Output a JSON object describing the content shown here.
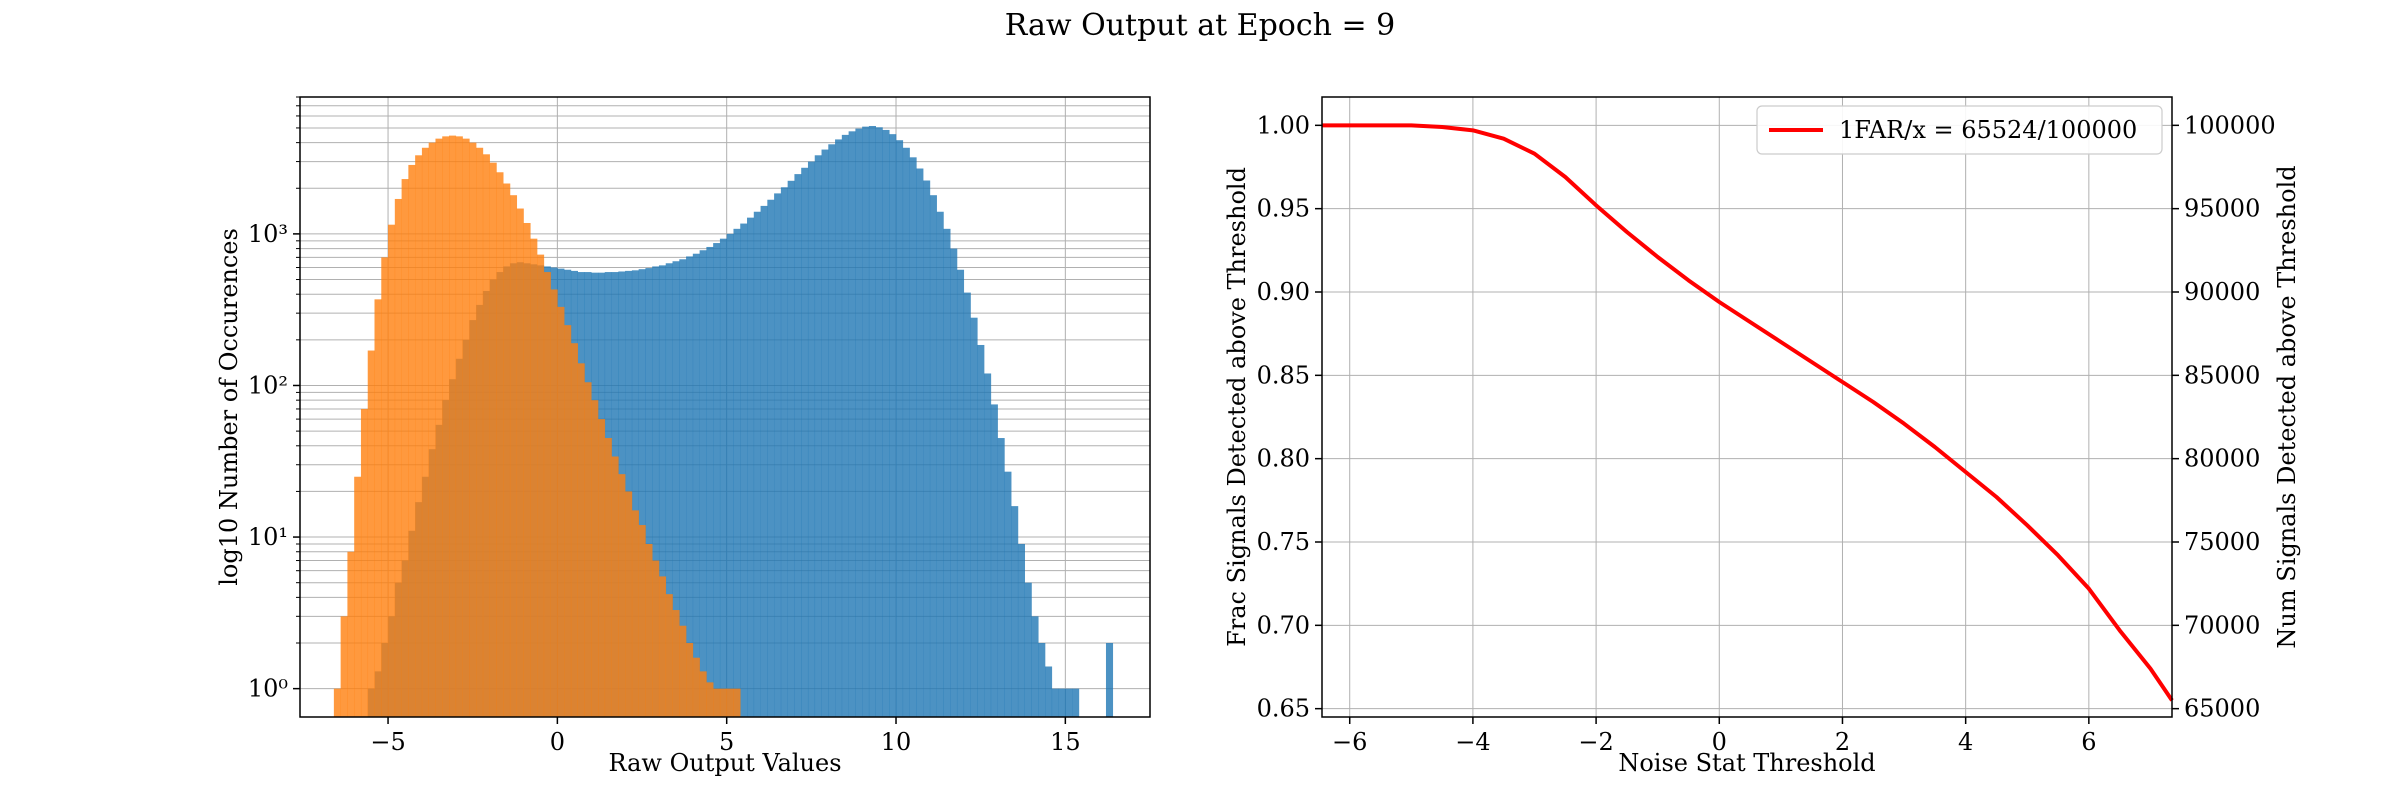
{
  "figure": {
    "suptitle": "Raw Output at Epoch = 9"
  },
  "chart_data": [
    {
      "type": "bar",
      "subtype": "histogram",
      "yscale": "log",
      "xlabel": "Raw Output Values",
      "ylabel": "log10 Number of Occurences",
      "xlim": [
        -7.6,
        17.5
      ],
      "ylim": [
        0.65,
        8000
      ],
      "xticks": [
        -5,
        0,
        5,
        10,
        15
      ],
      "xtick_labels": [
        "−5",
        "0",
        "5",
        "10",
        "15"
      ],
      "yticks": [
        1,
        10,
        100,
        1000
      ],
      "ytick_labels": [
        "10⁰",
        "10¹",
        "10²",
        "10³"
      ],
      "grid": true,
      "bin_width": 0.2,
      "series": [
        {
          "color": "#1f77b4",
          "alpha": 0.8,
          "bins": [
            [
              -5.5,
              1
            ],
            [
              -5.3,
              1.3
            ],
            [
              -5.1,
              2
            ],
            [
              -4.9,
              3
            ],
            [
              -4.7,
              5
            ],
            [
              -4.5,
              7
            ],
            [
              -4.3,
              11
            ],
            [
              -4.1,
              17
            ],
            [
              -3.9,
              25
            ],
            [
              -3.7,
              38
            ],
            [
              -3.5,
              55
            ],
            [
              -3.3,
              80
            ],
            [
              -3.1,
              110
            ],
            [
              -2.9,
              150
            ],
            [
              -2.7,
              200
            ],
            [
              -2.5,
              270
            ],
            [
              -2.3,
              340
            ],
            [
              -2.1,
              420
            ],
            [
              -1.9,
              500
            ],
            [
              -1.7,
              560
            ],
            [
              -1.5,
              610
            ],
            [
              -1.3,
              640
            ],
            [
              -1.1,
              650
            ],
            [
              -0.9,
              640
            ],
            [
              -0.7,
              630
            ],
            [
              -0.5,
              620
            ],
            [
              -0.3,
              610
            ],
            [
              -0.1,
              600
            ],
            [
              0.1,
              590
            ],
            [
              0.3,
              580
            ],
            [
              0.5,
              570
            ],
            [
              0.7,
              560
            ],
            [
              0.9,
              560
            ],
            [
              1.1,
              555
            ],
            [
              1.3,
              555
            ],
            [
              1.5,
              560
            ],
            [
              1.7,
              560
            ],
            [
              1.9,
              565
            ],
            [
              2.1,
              570
            ],
            [
              2.3,
              575
            ],
            [
              2.5,
              585
            ],
            [
              2.7,
              595
            ],
            [
              2.9,
              610
            ],
            [
              3.1,
              620
            ],
            [
              3.3,
              640
            ],
            [
              3.5,
              660
            ],
            [
              3.7,
              680
            ],
            [
              3.9,
              710
            ],
            [
              4.1,
              740
            ],
            [
              4.3,
              780
            ],
            [
              4.5,
              820
            ],
            [
              4.7,
              870
            ],
            [
              4.9,
              930
            ],
            [
              5.1,
              1000
            ],
            [
              5.3,
              1080
            ],
            [
              5.5,
              1170
            ],
            [
              5.7,
              1280
            ],
            [
              5.9,
              1400
            ],
            [
              6.1,
              1530
            ],
            [
              6.3,
              1680
            ],
            [
              6.5,
              1850
            ],
            [
              6.7,
              2030
            ],
            [
              6.9,
              2240
            ],
            [
              7.1,
              2480
            ],
            [
              7.3,
              2730
            ],
            [
              7.5,
              3000
            ],
            [
              7.7,
              3300
            ],
            [
              7.9,
              3600
            ],
            [
              8.1,
              3900
            ],
            [
              8.3,
              4200
            ],
            [
              8.5,
              4500
            ],
            [
              8.7,
              4750
            ],
            [
              8.9,
              4950
            ],
            [
              9.1,
              5100
            ],
            [
              9.3,
              5150
            ],
            [
              9.5,
              5050
            ],
            [
              9.7,
              4850
            ],
            [
              9.9,
              4550
            ],
            [
              10.1,
              4150
            ],
            [
              10.3,
              3700
            ],
            [
              10.5,
              3200
            ],
            [
              10.7,
              2700
            ],
            [
              10.9,
              2250
            ],
            [
              11.1,
              1800
            ],
            [
              11.3,
              1400
            ],
            [
              11.5,
              1080
            ],
            [
              11.7,
              800
            ],
            [
              11.9,
              580
            ],
            [
              12.1,
              410
            ],
            [
              12.3,
              280
            ],
            [
              12.5,
              185
            ],
            [
              12.7,
              120
            ],
            [
              12.9,
              75
            ],
            [
              13.1,
              45
            ],
            [
              13.3,
              27
            ],
            [
              13.5,
              16
            ],
            [
              13.7,
              9
            ],
            [
              13.9,
              5
            ],
            [
              14.1,
              3
            ],
            [
              14.3,
              2
            ],
            [
              14.5,
              1.4
            ],
            [
              14.7,
              1
            ],
            [
              14.9,
              1
            ],
            [
              15.1,
              1
            ],
            [
              15.3,
              1
            ],
            [
              16.3,
              2
            ]
          ]
        },
        {
          "color": "#ff7f0e",
          "alpha": 0.8,
          "bins": [
            [
              -6.5,
              1
            ],
            [
              -6.3,
              3
            ],
            [
              -6.1,
              8
            ],
            [
              -5.9,
              25
            ],
            [
              -5.7,
              70
            ],
            [
              -5.5,
              170
            ],
            [
              -5.3,
              370
            ],
            [
              -5.1,
              700
            ],
            [
              -4.9,
              1150
            ],
            [
              -4.7,
              1700
            ],
            [
              -4.5,
              2300
            ],
            [
              -4.3,
              2850
            ],
            [
              -4.1,
              3300
            ],
            [
              -3.9,
              3700
            ],
            [
              -3.7,
              4000
            ],
            [
              -3.5,
              4250
            ],
            [
              -3.3,
              4400
            ],
            [
              -3.1,
              4450
            ],
            [
              -2.9,
              4400
            ],
            [
              -2.7,
              4250
            ],
            [
              -2.5,
              4000
            ],
            [
              -2.3,
              3700
            ],
            [
              -2.1,
              3350
            ],
            [
              -1.9,
              2950
            ],
            [
              -1.7,
              2550
            ],
            [
              -1.5,
              2150
            ],
            [
              -1.3,
              1800
            ],
            [
              -1.1,
              1470
            ],
            [
              -0.9,
              1180
            ],
            [
              -0.7,
              930
            ],
            [
              -0.5,
              730
            ],
            [
              -0.3,
              560
            ],
            [
              -0.1,
              430
            ],
            [
              0.1,
              330
            ],
            [
              0.3,
              250
            ],
            [
              0.5,
              190
            ],
            [
              0.7,
              140
            ],
            [
              0.9,
              105
            ],
            [
              1.1,
              80
            ],
            [
              1.3,
              60
            ],
            [
              1.5,
              45
            ],
            [
              1.7,
              34
            ],
            [
              1.9,
              26
            ],
            [
              2.1,
              20
            ],
            [
              2.3,
              15
            ],
            [
              2.5,
              12
            ],
            [
              2.7,
              9
            ],
            [
              2.9,
              7
            ],
            [
              3.1,
              5.5
            ],
            [
              3.3,
              4.2
            ],
            [
              3.5,
              3.3
            ],
            [
              3.7,
              2.6
            ],
            [
              3.9,
              2
            ],
            [
              4.1,
              1.6
            ],
            [
              4.3,
              1.3
            ],
            [
              4.5,
              1.1
            ],
            [
              4.7,
              1
            ],
            [
              4.9,
              1
            ],
            [
              5.1,
              1
            ],
            [
              5.3,
              1
            ]
          ]
        }
      ]
    },
    {
      "type": "line",
      "xlabel": "Noise Stat Threshold",
      "ylabel": "Frac Signals Detected above Threshold",
      "ylabel_right": "Num Signals Detected above Threshold",
      "xlim": [
        -6.45,
        7.35
      ],
      "ylim": [
        0.645,
        1.017
      ],
      "ylim_right": [
        64500,
        101700
      ],
      "xticks": [
        -6,
        -4,
        -2,
        0,
        2,
        4,
        6
      ],
      "xtick_labels": [
        "−6",
        "−4",
        "−2",
        "0",
        "2",
        "4",
        "6"
      ],
      "yticks": [
        0.65,
        0.7,
        0.75,
        0.8,
        0.85,
        0.9,
        0.95,
        1.0
      ],
      "ytick_labels": [
        "0.65",
        "0.70",
        "0.75",
        "0.80",
        "0.85",
        "0.90",
        "0.95",
        "1.00"
      ],
      "yticks_right": [
        65000,
        70000,
        75000,
        80000,
        85000,
        90000,
        95000,
        100000
      ],
      "ytick_labels_right": [
        "65000",
        "70000",
        "75000",
        "80000",
        "85000",
        "90000",
        "95000",
        "100000"
      ],
      "grid": true,
      "legend_position": "top-right",
      "series": [
        {
          "name": "1FAR/x = 65524/100000",
          "color": "#ff0000",
          "x": [
            -6.45,
            -6,
            -5.5,
            -5,
            -4.5,
            -4,
            -3.5,
            -3,
            -2.5,
            -2,
            -1.5,
            -1,
            -0.5,
            0,
            0.5,
            1,
            1.5,
            2,
            2.5,
            3,
            3.5,
            4,
            4.5,
            5,
            5.5,
            6,
            6.5,
            7,
            7.35
          ],
          "y": [
            1.0,
            1.0,
            1.0,
            1.0,
            0.999,
            0.997,
            0.992,
            0.983,
            0.969,
            0.952,
            0.936,
            0.921,
            0.907,
            0.894,
            0.882,
            0.87,
            0.858,
            0.846,
            0.834,
            0.821,
            0.807,
            0.792,
            0.777,
            0.76,
            0.742,
            0.722,
            0.697,
            0.674,
            0.655
          ]
        }
      ]
    }
  ]
}
